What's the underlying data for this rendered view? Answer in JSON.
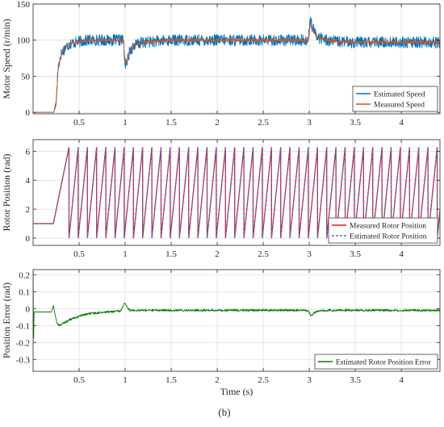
{
  "figure_caption": "(b)",
  "chart_data": [
    {
      "type": "line",
      "ylabel": "Motor Speed (r/min)",
      "xlabel": "",
      "xlim": [
        0,
        4.42
      ],
      "ylim": [
        -2,
        150
      ],
      "xticks": [
        0.5,
        1,
        1.5,
        2,
        2.5,
        3,
        3.5,
        4
      ],
      "xtick_labels": [
        "0.5",
        "1",
        "1.5",
        "2",
        "2.5",
        "3",
        "3.5",
        "4"
      ],
      "yticks": [
        0,
        50,
        100,
        150
      ],
      "ytick_labels": [
        "0",
        "50",
        "100",
        "150"
      ],
      "grid": true,
      "legend_position": "bottom-right",
      "series": [
        {
          "name": "Estimated Speed",
          "color": "#0072BD",
          "ripple": 8,
          "x": [
            0,
            0.2,
            0.225,
            0.25,
            0.27,
            0.3,
            0.35,
            0.4,
            0.5,
            0.6,
            0.7,
            0.8,
            0.9,
            0.98,
            1.0,
            1.02,
            1.05,
            1.1,
            1.2,
            1.5,
            2.0,
            2.5,
            2.95,
            2.99,
            3.01,
            3.03,
            3.06,
            3.1,
            3.2,
            3.3,
            3.5,
            4.0,
            4.42
          ],
          "y": [
            0,
            0,
            0,
            15,
            60,
            80,
            90,
            95,
            98,
            100,
            100,
            100,
            100,
            100,
            65,
            70,
            85,
            93,
            97,
            100,
            100,
            100,
            100,
            100,
            128,
            120,
            110,
            104,
            100,
            98,
            97,
            97,
            97
          ]
        },
        {
          "name": "Measured Speed",
          "color": "#D95319",
          "ripple": 2,
          "x": [
            0,
            0.2,
            0.225,
            0.25,
            0.27,
            0.3,
            0.35,
            0.4,
            0.5,
            0.6,
            0.7,
            0.8,
            0.9,
            0.98,
            1.0,
            1.02,
            1.05,
            1.1,
            1.2,
            1.5,
            2.0,
            2.5,
            2.95,
            2.99,
            3.01,
            3.03,
            3.06,
            3.1,
            3.2,
            3.3,
            3.5,
            4.0,
            4.42
          ],
          "y": [
            0,
            0,
            0,
            10,
            55,
            78,
            90,
            95,
            98,
            100,
            100,
            100,
            100,
            100,
            67,
            72,
            85,
            93,
            97,
            100,
            100,
            100,
            100,
            100,
            122,
            116,
            108,
            103,
            100,
            98,
            97,
            97,
            97
          ]
        }
      ]
    },
    {
      "type": "line",
      "ylabel": "Rotor Position (rad)",
      "xlabel": "",
      "xlim": [
        0,
        4.42
      ],
      "ylim": [
        -0.5,
        6.8
      ],
      "xticks": [
        0.5,
        1,
        1.5,
        2,
        2.5,
        3,
        3.5,
        4
      ],
      "xtick_labels": [
        "0.5",
        "1",
        "1.5",
        "2",
        "2.5",
        "3",
        "3.5",
        "4"
      ],
      "yticks": [
        0,
        2,
        4,
        6
      ],
      "ytick_labels": [
        "0",
        "2",
        "4",
        "6"
      ],
      "grid": true,
      "legend_position": "bottom-right",
      "sawtooth": {
        "initial_value": 1.0,
        "ramp_start": 0.22,
        "first_wrap": 0.39,
        "period": 0.1,
        "wrap_value": 6.28,
        "end_x": 4.42
      },
      "series": [
        {
          "name": "Measured Rotor Position",
          "color": "#E8141E",
          "style": "solid"
        },
        {
          "name": "Estimated Rotor Position",
          "color": "#3A7BD5",
          "style": "dashed"
        }
      ]
    },
    {
      "type": "line",
      "ylabel": "Position Error (rad)",
      "xlabel": "Time (s)",
      "xlim": [
        0,
        4.42
      ],
      "ylim": [
        -0.37,
        0.23
      ],
      "xticks": [
        0.5,
        1,
        1.5,
        2,
        2.5,
        3,
        3.5,
        4
      ],
      "xtick_labels": [
        "0.5",
        "1",
        "1.5",
        "2",
        "2.5",
        "3",
        "3.5",
        "4"
      ],
      "yticks": [
        -0.3,
        -0.2,
        -0.1,
        0,
        0.1,
        0.2
      ],
      "ytick_labels": [
        "-0.3",
        "-0.2",
        "-0.1",
        "0",
        "0.1",
        "0.2"
      ],
      "grid": true,
      "legend_position": "bottom-right",
      "series": [
        {
          "name": "Estimated Rotor Position Error",
          "color": "#0A7A0A",
          "ripple": 0.006,
          "x": [
            0,
            0.005,
            0.01,
            0.02,
            0.05,
            0.1,
            0.2,
            0.22,
            0.24,
            0.26,
            0.28,
            0.3,
            0.35,
            0.4,
            0.5,
            0.6,
            0.8,
            0.95,
            0.99,
            1.01,
            1.03,
            1.06,
            1.1,
            1.2,
            1.5,
            2.0,
            2.5,
            2.95,
            2.99,
            3.02,
            3.05,
            3.1,
            3.2,
            3.5,
            4.0,
            4.42
          ],
          "y": [
            0.22,
            -0.23,
            -0.02,
            -0.02,
            -0.02,
            -0.02,
            -0.02,
            0.02,
            -0.04,
            -0.085,
            -0.1,
            -0.095,
            -0.08,
            -0.065,
            -0.045,
            -0.03,
            -0.02,
            -0.015,
            0.03,
            0.02,
            0.0,
            -0.01,
            -0.01,
            -0.01,
            -0.01,
            -0.01,
            -0.01,
            -0.01,
            -0.015,
            -0.045,
            -0.025,
            -0.015,
            -0.01,
            -0.01,
            -0.01,
            -0.01
          ]
        }
      ]
    }
  ]
}
